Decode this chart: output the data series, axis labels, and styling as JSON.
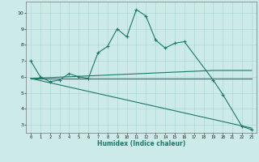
{
  "xlabel": "Humidex (Indice chaleur)",
  "x_all": [
    0,
    1,
    2,
    3,
    4,
    5,
    6,
    7,
    8,
    9,
    10,
    11,
    12,
    13,
    14,
    15,
    16,
    17,
    18,
    19,
    20,
    21,
    22,
    23
  ],
  "line1": [
    7.0,
    6.0,
    5.7,
    5.8,
    6.2,
    6.0,
    5.9,
    7.5,
    7.9,
    9.0,
    8.5,
    10.2,
    9.8,
    8.3,
    7.8,
    8.1,
    8.2,
    null,
    null,
    5.8,
    4.9,
    null,
    2.9,
    2.7
  ],
  "line2_x": [
    0,
    23
  ],
  "line2_y": [
    5.9,
    5.9
  ],
  "line3_x": [
    0,
    23
  ],
  "line3_y": [
    5.9,
    2.8
  ],
  "line4_x": [
    0,
    19,
    23
  ],
  "line4_y": [
    5.9,
    6.4,
    6.4
  ],
  "line_color": "#1a7a6a",
  "bg_color": "#cceae7",
  "grid_color": "#aad4d0",
  "ylim": [
    2.5,
    10.7
  ],
  "xlim": [
    -0.5,
    23.5
  ],
  "yticks": [
    3,
    4,
    5,
    6,
    7,
    8,
    9,
    10
  ],
  "xticks": [
    0,
    1,
    2,
    3,
    4,
    5,
    6,
    7,
    8,
    9,
    10,
    11,
    12,
    13,
    14,
    15,
    16,
    17,
    18,
    19,
    20,
    21,
    22,
    23
  ]
}
